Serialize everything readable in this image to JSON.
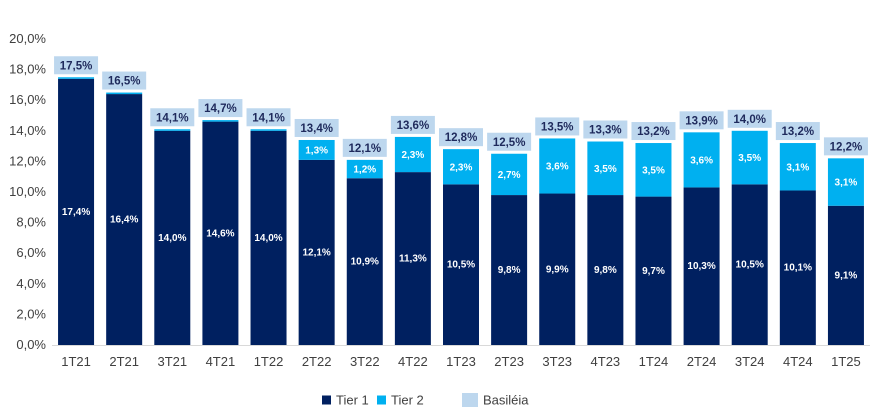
{
  "chart_data": {
    "type": "bar",
    "stacked": true,
    "categories": [
      "1T21",
      "2T21",
      "3T21",
      "4T21",
      "1T22",
      "2T22",
      "3T22",
      "4T22",
      "1T23",
      "2T23",
      "3T23",
      "4T23",
      "1T24",
      "2T24",
      "3T24",
      "4T24",
      "1T25"
    ],
    "series": [
      {
        "name": "Tier 1",
        "color": "#002060",
        "values": [
          17.4,
          16.4,
          14.0,
          14.6,
          14.0,
          12.1,
          10.9,
          11.3,
          10.5,
          9.8,
          9.9,
          9.8,
          9.7,
          10.3,
          10.5,
          10.1,
          9.1
        ],
        "labels": [
          "17,4%",
          "16,4%",
          "14,0%",
          "14,6%",
          "14,0%",
          "12,1%",
          "10,9%",
          "11,3%",
          "10,5%",
          "9,8%",
          "9,9%",
          "9,8%",
          "9,7%",
          "10,3%",
          "10,5%",
          "10,1%",
          "9,1%"
        ]
      },
      {
        "name": "Tier 2",
        "color": "#00B0F0",
        "values": [
          0.1,
          0.1,
          0.1,
          0.1,
          0.1,
          1.3,
          1.2,
          2.3,
          2.3,
          2.7,
          3.6,
          3.5,
          3.5,
          3.6,
          3.5,
          3.1,
          3.1
        ],
        "labels": [
          "",
          "",
          "",
          "",
          "",
          "1,3%",
          "1,2%",
          "2,3%",
          "2,3%",
          "2,7%",
          "3,6%",
          "3,5%",
          "3,5%",
          "3,6%",
          "3,5%",
          "3,1%",
          "3,1%"
        ]
      }
    ],
    "totals": {
      "name": "Basiléia",
      "color": "#BDD7EE",
      "values": [
        17.5,
        16.5,
        14.1,
        14.7,
        14.1,
        13.4,
        12.1,
        13.6,
        12.8,
        12.5,
        13.5,
        13.3,
        13.2,
        13.9,
        14.0,
        13.2,
        12.2
      ],
      "labels": [
        "17,5%",
        "16,5%",
        "14,1%",
        "14,7%",
        "14,1%",
        "13,4%",
        "12,1%",
        "13,6%",
        "12,8%",
        "12,5%",
        "13,5%",
        "13,3%",
        "13,2%",
        "13,9%",
        "14,0%",
        "13,2%",
        "12,2%"
      ]
    },
    "ylim": [
      0,
      20
    ],
    "y_ticks": [
      0,
      2,
      4,
      6,
      8,
      10,
      12,
      14,
      16,
      18,
      20
    ],
    "y_tick_labels": [
      "0,0%",
      "2,0%",
      "4,0%",
      "6,0%",
      "8,0%",
      "10,0%",
      "12,0%",
      "14,0%",
      "16,0%",
      "18,0%",
      "20,0%"
    ],
    "grid": false,
    "legend_position": "bottom",
    "title": "",
    "xlabel": "",
    "ylabel": ""
  }
}
